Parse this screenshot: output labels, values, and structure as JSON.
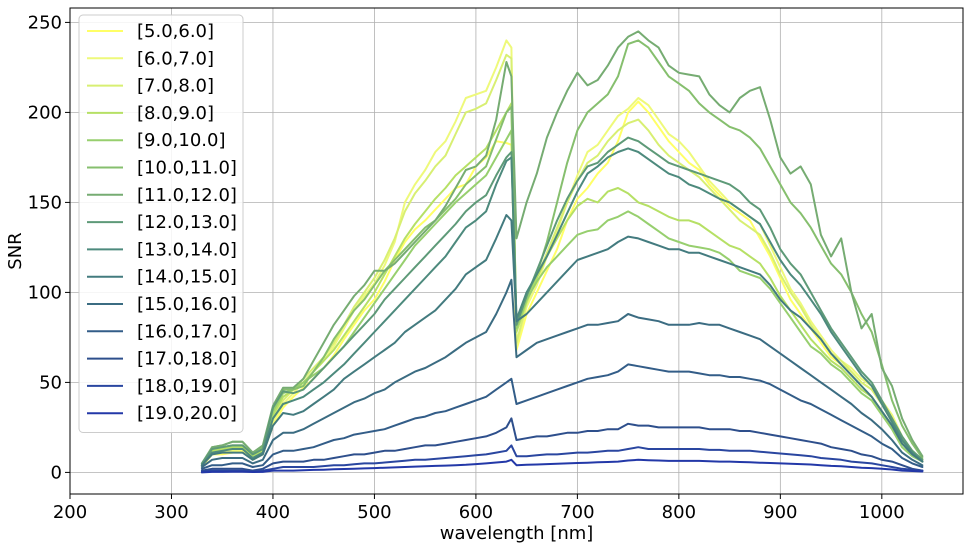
{
  "chart_data": {
    "type": "line",
    "title": "",
    "xlabel": "wavelength [nm]",
    "ylabel": "SNR",
    "xlim": [
      200,
      1080
    ],
    "ylim": [
      -12,
      258
    ],
    "xticks": [
      200,
      300,
      400,
      500,
      600,
      700,
      800,
      900,
      1000
    ],
    "yticks": [
      0,
      50,
      100,
      150,
      200,
      250
    ],
    "grid": true,
    "legend_position": "top-left",
    "x": [
      330,
      340,
      350,
      360,
      370,
      380,
      390,
      400,
      410,
      420,
      430,
      440,
      450,
      460,
      470,
      480,
      490,
      500,
      510,
      520,
      530,
      540,
      550,
      560,
      570,
      580,
      590,
      600,
      610,
      620,
      630,
      635,
      640,
      650,
      660,
      670,
      680,
      690,
      700,
      710,
      720,
      730,
      740,
      750,
      760,
      770,
      780,
      790,
      800,
      810,
      820,
      830,
      840,
      850,
      860,
      870,
      880,
      890,
      900,
      910,
      920,
      930,
      940,
      950,
      960,
      970,
      980,
      990,
      1000,
      1010,
      1020,
      1030,
      1040
    ],
    "series": [
      {
        "name": "[5.0,6.0]",
        "color": "#ffff66",
        "values": [
          3,
          10,
          10,
          11,
          12,
          7,
          10,
          26,
          36,
          42,
          47,
          52,
          58,
          65,
          74,
          82,
          90,
          96,
          106,
          118,
          128,
          135,
          140,
          146,
          152,
          158,
          160,
          170,
          175,
          184,
          183,
          182,
          68,
          88,
          100,
          112,
          124,
          140,
          152,
          158,
          166,
          172,
          184,
          200,
          206,
          200,
          192,
          184,
          178,
          172,
          168,
          160,
          154,
          148,
          144,
          140,
          130,
          120,
          108,
          96,
          88,
          80,
          72,
          64,
          60,
          56,
          50,
          46,
          38,
          30,
          18,
          10,
          6
        ]
      },
      {
        "name": "[6.0,7.0]",
        "color": "#eef97a",
        "values": [
          4,
          11,
          11,
          12,
          13,
          8,
          11,
          28,
          38,
          44,
          50,
          56,
          62,
          70,
          80,
          90,
          98,
          105,
          115,
          128,
          150,
          160,
          168,
          178,
          184,
          195,
          208,
          210,
          212,
          225,
          240,
          236,
          70,
          92,
          104,
          120,
          134,
          150,
          165,
          178,
          182,
          190,
          198,
          202,
          208,
          204,
          196,
          188,
          184,
          178,
          170,
          162,
          156,
          150,
          146,
          142,
          138,
          126,
          114,
          102,
          94,
          84,
          76,
          68,
          62,
          58,
          52,
          48,
          40,
          32,
          20,
          12,
          7
        ]
      },
      {
        "name": "[7.0,8.0]",
        "color": "#d8ef72",
        "values": [
          4,
          12,
          12,
          13,
          14,
          9,
          12,
          30,
          40,
          46,
          52,
          58,
          64,
          72,
          82,
          92,
          100,
          108,
          118,
          130,
          145,
          155,
          162,
          170,
          176,
          188,
          200,
          202,
          205,
          218,
          232,
          230,
          72,
          94,
          108,
          122,
          136,
          150,
          162,
          172,
          176,
          184,
          190,
          194,
          196,
          190,
          182,
          176,
          172,
          168,
          164,
          158,
          152,
          146,
          140,
          136,
          132,
          122,
          110,
          100,
          92,
          82,
          74,
          66,
          62,
          56,
          50,
          46,
          38,
          30,
          18,
          11,
          7
        ]
      },
      {
        "name": "[8.0,9.0]",
        "color": "#b6e065",
        "values": [
          4,
          12,
          13,
          14,
          14,
          9,
          12,
          32,
          42,
          46,
          50,
          56,
          62,
          68,
          76,
          84,
          92,
          100,
          110,
          120,
          130,
          138,
          145,
          152,
          158,
          165,
          170,
          175,
          180,
          190,
          200,
          205,
          78,
          95,
          108,
          120,
          130,
          140,
          148,
          152,
          150,
          156,
          158,
          155,
          150,
          148,
          145,
          142,
          140,
          140,
          138,
          134,
          130,
          126,
          124,
          120,
          116,
          108,
          98,
          90,
          82,
          74,
          68,
          62,
          58,
          52,
          46,
          42,
          34,
          26,
          16,
          10,
          6
        ]
      },
      {
        "name": "[9.0,10.0]",
        "color": "#97cf6e",
        "values": [
          4,
          13,
          14,
          15,
          15,
          10,
          13,
          34,
          44,
          46,
          50,
          54,
          58,
          64,
          70,
          78,
          86,
          94,
          102,
          110,
          118,
          126,
          132,
          138,
          144,
          150,
          155,
          160,
          165,
          175,
          185,
          190,
          80,
          96,
          106,
          114,
          120,
          126,
          132,
          134,
          135,
          140,
          142,
          145,
          142,
          138,
          134,
          130,
          128,
          126,
          125,
          124,
          122,
          118,
          112,
          110,
          108,
          102,
          94,
          86,
          78,
          70,
          66,
          60,
          56,
          50,
          44,
          40,
          32,
          24,
          14,
          9,
          6
        ]
      },
      {
        "name": "[10.0,11.0]",
        "color": "#86bf6e",
        "values": [
          4,
          14,
          15,
          17,
          17,
          11,
          14,
          36,
          46,
          46,
          48,
          56,
          64,
          74,
          82,
          90,
          96,
          104,
          112,
          118,
          124,
          130,
          136,
          140,
          146,
          152,
          160,
          165,
          170,
          185,
          200,
          203,
          82,
          98,
          110,
          128,
          150,
          172,
          190,
          200,
          205,
          210,
          220,
          238,
          240,
          236,
          228,
          220,
          216,
          212,
          205,
          200,
          196,
          192,
          190,
          186,
          180,
          170,
          160,
          150,
          144,
          136,
          126,
          116,
          110,
          100,
          88,
          78,
          60,
          40,
          26,
          16,
          8
        ]
      },
      {
        "name": "[11.0,12.0]",
        "color": "#76ac72",
        "values": [
          5,
          14,
          15,
          17,
          17,
          11,
          15,
          37,
          47,
          47,
          52,
          62,
          72,
          82,
          90,
          98,
          104,
          112,
          112,
          116,
          122,
          128,
          134,
          140,
          148,
          158,
          168,
          170,
          176,
          196,
          228,
          220,
          130,
          150,
          166,
          186,
          200,
          212,
          222,
          215,
          218,
          226,
          236,
          242,
          245,
          240,
          236,
          226,
          222,
          221,
          220,
          210,
          204,
          200,
          208,
          212,
          214,
          196,
          175,
          166,
          170,
          160,
          132,
          120,
          130,
          100,
          80,
          88,
          58,
          48,
          30,
          18,
          9
        ]
      },
      {
        "name": "[12.0,13.0]",
        "color": "#5e9a78",
        "values": [
          5,
          13,
          14,
          15,
          15,
          10,
          13,
          36,
          45,
          44,
          46,
          52,
          58,
          64,
          70,
          76,
          82,
          88,
          96,
          102,
          108,
          114,
          120,
          126,
          132,
          138,
          145,
          150,
          154,
          165,
          175,
          178,
          82,
          98,
          112,
          126,
          140,
          152,
          162,
          170,
          172,
          178,
          182,
          186,
          184,
          180,
          176,
          172,
          170,
          168,
          166,
          164,
          162,
          160,
          156,
          150,
          146,
          136,
          124,
          116,
          110,
          100,
          90,
          80,
          72,
          64,
          56,
          50,
          40,
          30,
          20,
          12,
          7
        ]
      },
      {
        "name": "[13.0,14.0]",
        "color": "#4d8a7d",
        "values": [
          4,
          11,
          12,
          13,
          13,
          8,
          11,
          30,
          38,
          40,
          42,
          46,
          50,
          55,
          60,
          66,
          72,
          78,
          84,
          90,
          96,
          102,
          108,
          114,
          120,
          128,
          136,
          140,
          145,
          160,
          173,
          175,
          85,
          100,
          110,
          120,
          132,
          144,
          156,
          166,
          170,
          175,
          178,
          180,
          178,
          174,
          170,
          166,
          164,
          160,
          158,
          155,
          152,
          150,
          146,
          142,
          138,
          128,
          118,
          110,
          104,
          96,
          88,
          78,
          70,
          62,
          54,
          48,
          38,
          28,
          18,
          11,
          6
        ]
      },
      {
        "name": "[14.0,15.0]",
        "color": "#437b7f",
        "values": [
          4,
          10,
          11,
          11,
          11,
          7,
          10,
          26,
          33,
          32,
          34,
          38,
          42,
          46,
          52,
          56,
          60,
          64,
          68,
          72,
          78,
          82,
          86,
          90,
          96,
          102,
          110,
          114,
          118,
          130,
          143,
          140,
          84,
          88,
          94,
          100,
          106,
          112,
          118,
          120,
          122,
          124,
          128,
          131,
          130,
          128,
          126,
          124,
          124,
          122,
          122,
          120,
          118,
          116,
          114,
          112,
          110,
          104,
          96,
          90,
          86,
          80,
          74,
          66,
          60,
          54,
          48,
          42,
          34,
          26,
          16,
          10,
          6
        ]
      },
      {
        "name": "[15.0,16.0]",
        "color": "#3b6c82",
        "values": [
          3,
          7,
          8,
          8,
          8,
          5,
          7,
          18,
          22,
          22,
          24,
          27,
          30,
          33,
          36,
          39,
          41,
          44,
          46,
          50,
          53,
          56,
          58,
          61,
          64,
          68,
          72,
          75,
          78,
          88,
          100,
          107,
          64,
          68,
          72,
          74,
          76,
          78,
          80,
          82,
          82,
          83,
          84,
          88,
          86,
          85,
          84,
          82,
          82,
          82,
          83,
          82,
          82,
          80,
          78,
          76,
          74,
          70,
          66,
          62,
          58,
          54,
          50,
          46,
          42,
          38,
          33,
          29,
          24,
          18,
          11,
          7,
          4
        ]
      },
      {
        "name": "[16.0,17.0]",
        "color": "#335d88",
        "values": [
          2,
          4,
          4,
          5,
          5,
          3,
          4,
          10,
          12,
          12,
          13,
          14,
          16,
          18,
          19,
          21,
          22,
          23,
          24,
          26,
          28,
          30,
          31,
          33,
          34,
          36,
          38,
          40,
          42,
          46,
          50,
          52,
          38,
          40,
          42,
          44,
          46,
          48,
          50,
          52,
          53,
          54,
          56,
          60,
          59,
          58,
          57,
          56,
          56,
          56,
          55,
          54,
          54,
          53,
          53,
          52,
          51,
          49,
          46,
          43,
          40,
          38,
          35,
          32,
          29,
          26,
          23,
          20,
          16,
          13,
          8,
          5,
          3
        ]
      },
      {
        "name": "[17.0,18.0]",
        "color": "#2e4f8c",
        "values": [
          1,
          2,
          2,
          2,
          2,
          1,
          2,
          5,
          6,
          6,
          6,
          7,
          7,
          8,
          9,
          10,
          10,
          11,
          12,
          12,
          13,
          14,
          15,
          15,
          16,
          17,
          18,
          19,
          20,
          22,
          25,
          30,
          18,
          19,
          20,
          20,
          21,
          22,
          22,
          23,
          23,
          24,
          24,
          27,
          26,
          26,
          25,
          25,
          25,
          25,
          25,
          24,
          24,
          24,
          23,
          23,
          22,
          21,
          20,
          19,
          18,
          17,
          16,
          14,
          13,
          12,
          10,
          9,
          7,
          6,
          4,
          2,
          1
        ]
      },
      {
        "name": "[18.0,19.0]",
        "color": "#2a46a0",
        "values": [
          0.5,
          1,
          1,
          1,
          1,
          0.5,
          1,
          2,
          3,
          3,
          3,
          3,
          3.5,
          4,
          4,
          4.5,
          5,
          5,
          5.5,
          6,
          6.5,
          7,
          7,
          7.5,
          8,
          8.5,
          9,
          9.5,
          10,
          11,
          12,
          15,
          9,
          9,
          9.5,
          10,
          10,
          10.5,
          11,
          11,
          11.5,
          12,
          12,
          13,
          14,
          13,
          13,
          13,
          13,
          13,
          13,
          12.5,
          12.5,
          12,
          12,
          12,
          11.5,
          11,
          10.5,
          10,
          9.5,
          9,
          8,
          7.5,
          7,
          6,
          5.5,
          5,
          4,
          3,
          2,
          1.5,
          1
        ]
      },
      {
        "name": "[19.0,20.0]",
        "color": "#2338a8",
        "values": [
          0,
          0.3,
          0.3,
          0.4,
          0.4,
          0.2,
          0.3,
          1,
          1,
          1,
          1.2,
          1.4,
          1.5,
          1.7,
          1.9,
          2,
          2.2,
          2.4,
          2.6,
          2.8,
          3,
          3.2,
          3.4,
          3.6,
          3.8,
          4,
          4.2,
          4.6,
          5,
          5.5,
          6,
          7,
          4,
          4.2,
          4.4,
          4.6,
          4.8,
          5,
          5.2,
          5.4,
          5.6,
          5.8,
          6,
          6.6,
          7,
          6.8,
          6.6,
          6.4,
          6.4,
          6.4,
          6.4,
          6.2,
          6,
          6,
          5.8,
          5.6,
          5.4,
          5.2,
          5,
          4.8,
          4.6,
          4.4,
          4,
          3.6,
          3.4,
          3,
          2.6,
          2.4,
          2,
          1.6,
          1,
          0.8,
          0.5
        ]
      }
    ]
  }
}
